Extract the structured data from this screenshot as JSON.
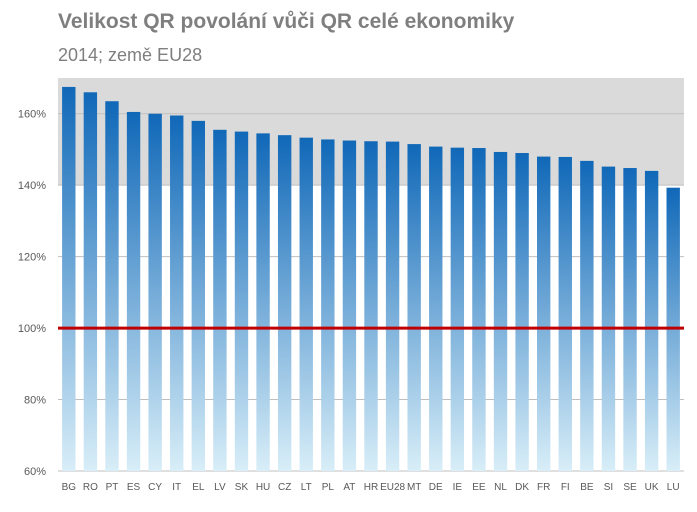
{
  "chart_data": {
    "type": "bar",
    "title": "Velikost QR povolání vůči QR celé ekonomiky",
    "subtitle": "2014; země EU28",
    "categories": [
      "BG",
      "RO",
      "PT",
      "ES",
      "CY",
      "IT",
      "EL",
      "LV",
      "SK",
      "HU",
      "CZ",
      "LT",
      "PL",
      "AT",
      "HR",
      "EU28",
      "MT",
      "DE",
      "IE",
      "EE",
      "NL",
      "DK",
      "FR",
      "FI",
      "BE",
      "SI",
      "SE",
      "UK",
      "LU"
    ],
    "values": [
      167.5,
      166,
      163.5,
      160.5,
      160,
      159.5,
      158,
      155.5,
      155,
      154.5,
      154,
      153.3,
      152.8,
      152.5,
      152.3,
      152.2,
      151.5,
      150.8,
      150.5,
      150.4,
      149.3,
      149,
      148,
      147.9,
      146.8,
      145.2,
      144.8,
      144,
      139.3
    ],
    "ylim": [
      60,
      170
    ],
    "yticks": [
      60,
      80,
      100,
      120,
      140,
      160
    ],
    "ytick_labels": [
      "60%",
      "80%",
      "100%",
      "120%",
      "140%",
      "160%"
    ],
    "reference_line": 100,
    "grid": true,
    "colors": {
      "bar_top": "#1068b8",
      "bar_bottom": "#d8eef8",
      "reference": "#c00000",
      "band": "#dadada",
      "grid": "#bfbfbf",
      "axis_text": "#595959"
    }
  }
}
